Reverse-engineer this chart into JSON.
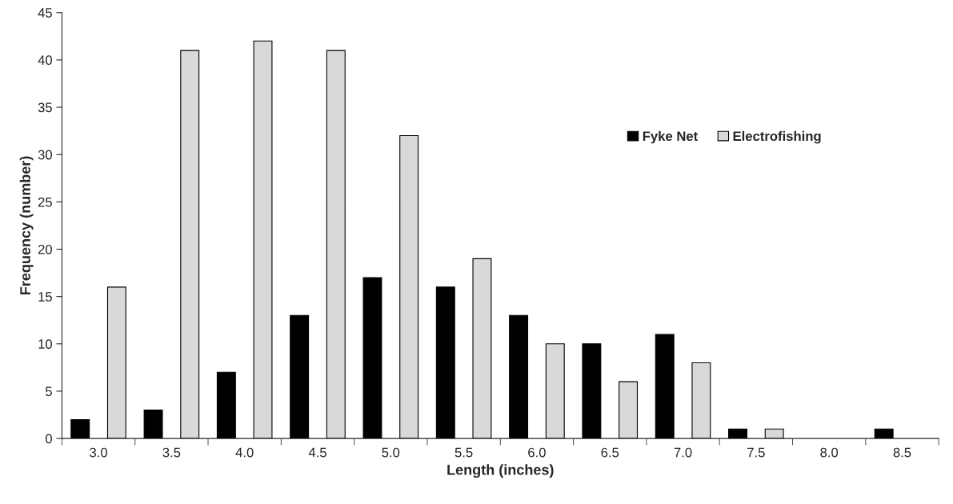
{
  "chart_data": {
    "type": "bar",
    "xlabel": "Length (inches)",
    "ylabel": "Frequency (number)",
    "categories": [
      "3.0",
      "3.5",
      "4.0",
      "4.5",
      "5.0",
      "5.5",
      "6.0",
      "6.5",
      "7.0",
      "7.5",
      "8.0",
      "8.5"
    ],
    "series": [
      {
        "name": "Fyke Net",
        "color": "#000000",
        "values": [
          2,
          3,
          7,
          13,
          17,
          16,
          13,
          10,
          11,
          1,
          0,
          1
        ]
      },
      {
        "name": "Electrofishing",
        "color": "#d9d9d9",
        "values": [
          16,
          41,
          42,
          41,
          32,
          19,
          10,
          6,
          8,
          1,
          0,
          0
        ]
      }
    ],
    "ylim": [
      0,
      45
    ],
    "yticks": [
      0,
      5,
      10,
      15,
      20,
      25,
      30,
      35,
      40,
      45
    ],
    "grid": false,
    "legend": "top right"
  }
}
